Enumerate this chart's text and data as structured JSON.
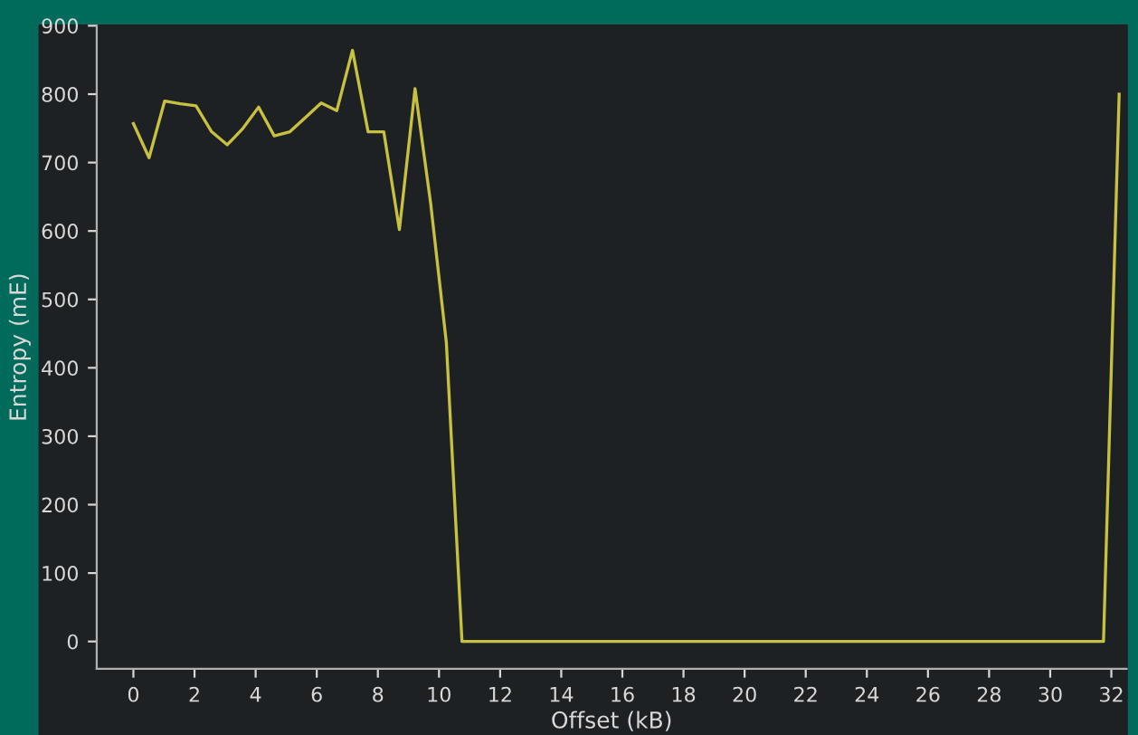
{
  "chart_data": {
    "type": "line",
    "xlabel": "Offset (kB)",
    "ylabel": "Entropy (mE)",
    "x": [
      0,
      0.512,
      1.024,
      1.536,
      2.048,
      2.56,
      3.072,
      3.584,
      4.096,
      4.608,
      5.12,
      5.632,
      6.144,
      6.656,
      7.168,
      7.68,
      8.192,
      8.704,
      9.216,
      9.728,
      10.24,
      10.752,
      31.744,
      32.256
    ],
    "series": [
      {
        "color": "#c8c040",
        "values": [
          757,
          707,
          790,
          786,
          783,
          745,
          726,
          750,
          781,
          739,
          745,
          766,
          787,
          776,
          864,
          745,
          745,
          602,
          808,
          640,
          437,
          0,
          0,
          800
        ]
      }
    ],
    "xlim": [
      -1.2,
      32.5
    ],
    "ylim": [
      -40,
      900
    ],
    "xticks": [
      0,
      2,
      4,
      6,
      8,
      10,
      12,
      14,
      16,
      18,
      20,
      22,
      24,
      26,
      28,
      30,
      32
    ],
    "yticks": [
      0,
      100,
      200,
      300,
      400,
      500,
      600,
      700,
      800,
      900
    ],
    "grid": false,
    "legend": false,
    "marker": "none",
    "line_style": "solid"
  }
}
